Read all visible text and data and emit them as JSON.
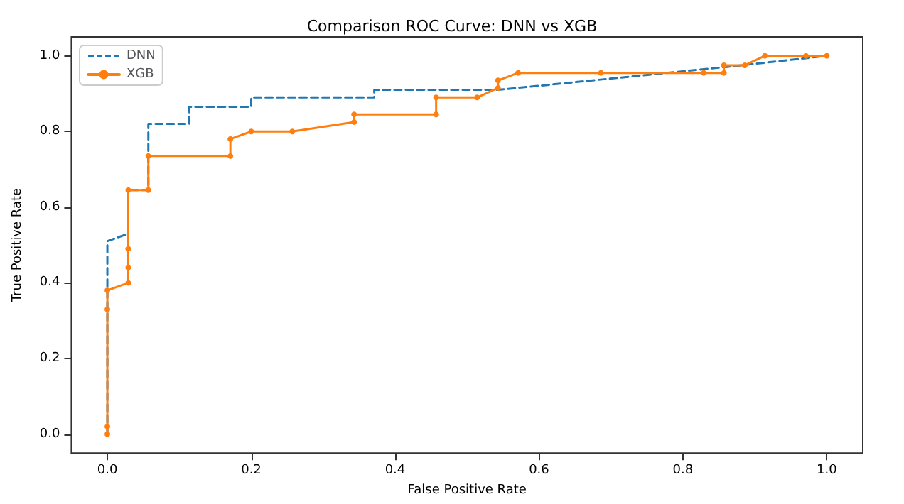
{
  "chart_data": {
    "type": "line",
    "title": "Comparison ROC Curve: DNN vs XGB",
    "xlabel": "False Positive Rate",
    "ylabel": "True Positive Rate",
    "xlim": [
      -0.05,
      1.05
    ],
    "ylim": [
      -0.05,
      1.05
    ],
    "xticks": [
      {
        "value": 0,
        "label": "0.0"
      },
      0.2,
      0.4,
      0.6,
      0.8,
      {
        "value": 1,
        "label": "1.0"
      }
    ],
    "yticks": [
      {
        "value": 0,
        "label": "0.0"
      },
      0.2,
      0.4,
      0.6,
      0.8,
      {
        "value": 1,
        "label": "1.0"
      }
    ],
    "grid": false,
    "legend": "top left",
    "series": [
      {
        "name": "DNN",
        "color": "#1f77b4",
        "line_style": "dashed",
        "marker": "none",
        "x": [
          0,
          0,
          0.029,
          0.029,
          0.057,
          0.057,
          0.114,
          0.114,
          0.2,
          0.2,
          0.371,
          0.371,
          0.543,
          0.857,
          1
        ],
        "values": [
          0,
          0.51,
          0.53,
          0.645,
          0.645,
          0.82,
          0.82,
          0.865,
          0.865,
          0.89,
          0.89,
          0.91,
          0.91,
          0.97,
          1
        ]
      },
      {
        "name": "XGB",
        "color": "#ff7f0e",
        "line_style": "solid",
        "marker": "circle",
        "x": [
          0,
          0,
          0,
          0,
          0.029,
          0.029,
          0.029,
          0.029,
          0.057,
          0.057,
          0.171,
          0.171,
          0.2,
          0.257,
          0.343,
          0.343,
          0.457,
          0.457,
          0.514,
          0.543,
          0.543,
          0.571,
          0.686,
          0.829,
          0.857,
          0.857,
          0.886,
          0.914,
          0.971,
          1
        ],
        "values": [
          0,
          0.02,
          0.33,
          0.38,
          0.4,
          0.44,
          0.49,
          0.645,
          0.645,
          0.735,
          0.735,
          0.78,
          0.8,
          0.8,
          0.825,
          0.845,
          0.845,
          0.89,
          0.89,
          0.915,
          0.935,
          0.955,
          0.955,
          0.955,
          0.955,
          0.975,
          0.975,
          1,
          1,
          1
        ]
      }
    ]
  }
}
